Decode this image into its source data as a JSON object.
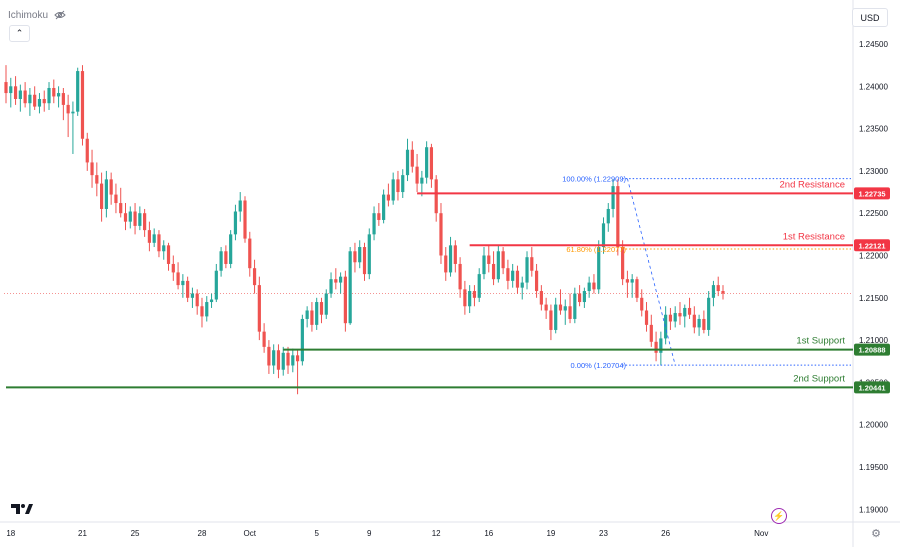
{
  "header": {
    "indicator_label": "Ichimoku",
    "collapse_label": "⌃",
    "currency": "USD"
  },
  "icons": {
    "visibility": "eye-crossed-icon",
    "logo": "tradingview-logo-icon",
    "bolt": "lightning-icon",
    "settings": "gear-icon"
  },
  "colors": {
    "up": "#26a69a",
    "down": "#ef5350",
    "resistance": "#f23645",
    "support": "#2e7d32",
    "fib": "#2962ff",
    "fib618": "#ff9800",
    "last": "#ef5350"
  },
  "chart_data": {
    "type": "candlestick",
    "ylim": [
      1.1885,
      1.2502
    ],
    "y_ticks": [
      "1.24500",
      "1.24000",
      "1.23500",
      "1.23000",
      "1.22500",
      "1.22000",
      "1.21500",
      "1.21000",
      "1.20500",
      "1.20000",
      "1.19500",
      "1.19000"
    ],
    "x_ticks": [
      {
        "i": 1,
        "label": "18"
      },
      {
        "i": 16,
        "label": "21"
      },
      {
        "i": 27,
        "label": "25"
      },
      {
        "i": 41,
        "label": "28"
      },
      {
        "i": 51,
        "label": "Oct"
      },
      {
        "i": 65,
        "label": "5"
      },
      {
        "i": 76,
        "label": "9"
      },
      {
        "i": 90,
        "label": "12"
      },
      {
        "i": 101,
        "label": "16"
      },
      {
        "i": 114,
        "label": "19"
      },
      {
        "i": 125,
        "label": "23"
      },
      {
        "i": 138,
        "label": "26"
      },
      {
        "i": 158,
        "label": "Nov"
      }
    ],
    "last_price": 1.2155,
    "levels": [
      {
        "name": "2nd Resistance",
        "value": 1.22735,
        "price_label": "1.22735",
        "kind": "resistance",
        "from_i": 86
      },
      {
        "name": "1st Resistance",
        "value": 1.22121,
        "price_label": "1.22121",
        "kind": "resistance",
        "from_i": 97
      },
      {
        "name": "1st Support",
        "value": 1.20888,
        "price_label": "1.20888",
        "kind": "support",
        "from_i": 58
      },
      {
        "name": "2nd Support",
        "value": 1.20441,
        "price_label": "1.20441",
        "kind": "support",
        "from_i": 0
      }
    ],
    "fibonacci": [
      {
        "label": "100.00% (1.22909)",
        "value": 1.22909,
        "kind": "fib"
      },
      {
        "label": "61.80% (1.22077)",
        "value": 1.22077,
        "kind": "fib618"
      },
      {
        "label": "0.00% (1.20704)",
        "value": 1.20704,
        "kind": "fib"
      }
    ],
    "candles": [
      [
        1.2405,
        1.2425,
        1.238,
        1.2392
      ],
      [
        1.2392,
        1.241,
        1.2375,
        1.24
      ],
      [
        1.24,
        1.2412,
        1.2378,
        1.2385
      ],
      [
        1.2385,
        1.2402,
        1.237,
        1.2395
      ],
      [
        1.2395,
        1.2405,
        1.2375,
        1.238
      ],
      [
        1.238,
        1.2398,
        1.2365,
        1.239
      ],
      [
        1.239,
        1.24,
        1.2372,
        1.2376
      ],
      [
        1.2376,
        1.2392,
        1.2368,
        1.2385
      ],
      [
        1.2385,
        1.2395,
        1.237,
        1.238
      ],
      [
        1.238,
        1.2405,
        1.2372,
        1.2398
      ],
      [
        1.2398,
        1.2408,
        1.238,
        1.2388
      ],
      [
        1.2388,
        1.24,
        1.2375,
        1.2392
      ],
      [
        1.2392,
        1.2398,
        1.236,
        1.2378
      ],
      [
        1.2378,
        1.239,
        1.234,
        1.2368
      ],
      [
        1.2368,
        1.2382,
        1.232,
        1.237
      ],
      [
        1.237,
        1.2422,
        1.2365,
        1.2418
      ],
      [
        1.2418,
        1.2425,
        1.233,
        1.2338
      ],
      [
        1.2338,
        1.2345,
        1.23,
        1.231
      ],
      [
        1.231,
        1.2325,
        1.228,
        1.2295
      ],
      [
        1.2295,
        1.231,
        1.227,
        1.2285
      ],
      [
        1.2285,
        1.2298,
        1.224,
        1.2255
      ],
      [
        1.2255,
        1.23,
        1.2245,
        1.229
      ],
      [
        1.229,
        1.2298,
        1.226,
        1.2272
      ],
      [
        1.2272,
        1.2285,
        1.225,
        1.2262
      ],
      [
        1.2262,
        1.228,
        1.2245,
        1.225
      ],
      [
        1.225,
        1.2262,
        1.223,
        1.224
      ],
      [
        1.224,
        1.2258,
        1.2232,
        1.2252
      ],
      [
        1.2252,
        1.2262,
        1.2225,
        1.2235
      ],
      [
        1.2235,
        1.2258,
        1.223,
        1.225
      ],
      [
        1.225,
        1.2255,
        1.2222,
        1.223
      ],
      [
        1.223,
        1.224,
        1.2205,
        1.2215
      ],
      [
        1.2215,
        1.2232,
        1.221,
        1.2225
      ],
      [
        1.2225,
        1.223,
        1.2198,
        1.2205
      ],
      [
        1.2205,
        1.2218,
        1.2195,
        1.2212
      ],
      [
        1.2212,
        1.2215,
        1.2182,
        1.219
      ],
      [
        1.219,
        1.22,
        1.217,
        1.218
      ],
      [
        1.218,
        1.2192,
        1.216,
        1.2165
      ],
      [
        1.2165,
        1.2178,
        1.215,
        1.217
      ],
      [
        1.217,
        1.2175,
        1.2145,
        1.215
      ],
      [
        1.215,
        1.2162,
        1.2138,
        1.2155
      ],
      [
        1.2155,
        1.216,
        1.213,
        1.214
      ],
      [
        1.214,
        1.215,
        1.2115,
        1.2128
      ],
      [
        1.2128,
        1.2152,
        1.2122,
        1.2145
      ],
      [
        1.2145,
        1.2155,
        1.2138,
        1.2148
      ],
      [
        1.2148,
        1.219,
        1.2145,
        1.2182
      ],
      [
        1.2182,
        1.221,
        1.2175,
        1.2205
      ],
      [
        1.2205,
        1.2212,
        1.2185,
        1.219
      ],
      [
        1.219,
        1.223,
        1.2185,
        1.2225
      ],
      [
        1.2225,
        1.226,
        1.2218,
        1.2252
      ],
      [
        1.2252,
        1.2275,
        1.224,
        1.2265
      ],
      [
        1.2265,
        1.227,
        1.2215,
        1.222
      ],
      [
        1.222,
        1.2228,
        1.2175,
        1.2185
      ],
      [
        1.2185,
        1.2195,
        1.2155,
        1.2165
      ],
      [
        1.2165,
        1.2175,
        1.21,
        1.211
      ],
      [
        1.211,
        1.212,
        1.2085,
        1.2092
      ],
      [
        1.2092,
        1.21,
        1.206,
        1.207
      ],
      [
        1.207,
        1.2095,
        1.206,
        1.2088
      ],
      [
        1.2088,
        1.2095,
        1.2055,
        1.2065
      ],
      [
        1.2065,
        1.2092,
        1.2058,
        1.2085
      ],
      [
        1.2085,
        1.2092,
        1.206,
        1.207
      ],
      [
        1.207,
        1.209,
        1.2062,
        1.2082
      ],
      [
        1.2082,
        1.2088,
        1.2036,
        1.2075
      ],
      [
        1.2075,
        1.213,
        1.207,
        1.2125
      ],
      [
        1.2125,
        1.214,
        1.2115,
        1.2135
      ],
      [
        1.2135,
        1.2145,
        1.211,
        1.2118
      ],
      [
        1.2118,
        1.215,
        1.2112,
        1.2145
      ],
      [
        1.2145,
        1.215,
        1.212,
        1.213
      ],
      [
        1.213,
        1.216,
        1.2125,
        1.2155
      ],
      [
        1.2155,
        1.218,
        1.215,
        1.2172
      ],
      [
        1.2172,
        1.2185,
        1.216,
        1.2168
      ],
      [
        1.2168,
        1.218,
        1.2155,
        1.2175
      ],
      [
        1.2175,
        1.2182,
        1.211,
        1.212
      ],
      [
        1.212,
        1.221,
        1.2118,
        1.2205
      ],
      [
        1.2205,
        1.2215,
        1.218,
        1.2192
      ],
      [
        1.2192,
        1.2218,
        1.2185,
        1.221
      ],
      [
        1.221,
        1.2215,
        1.217,
        1.2178
      ],
      [
        1.2178,
        1.2232,
        1.2172,
        1.2225
      ],
      [
        1.2225,
        1.2258,
        1.2218,
        1.225
      ],
      [
        1.225,
        1.2262,
        1.2235,
        1.2242
      ],
      [
        1.2242,
        1.2278,
        1.2238,
        1.2272
      ],
      [
        1.2272,
        1.2285,
        1.2258,
        1.2265
      ],
      [
        1.2265,
        1.2298,
        1.226,
        1.229
      ],
      [
        1.229,
        1.23,
        1.2265,
        1.2275
      ],
      [
        1.2275,
        1.2302,
        1.2268,
        1.2295
      ],
      [
        1.2295,
        1.2338,
        1.2288,
        1.2325
      ],
      [
        1.2325,
        1.2335,
        1.2298,
        1.2305
      ],
      [
        1.2305,
        1.232,
        1.2275,
        1.2285
      ],
      [
        1.2285,
        1.23,
        1.227,
        1.2292
      ],
      [
        1.2292,
        1.2335,
        1.2285,
        1.2328
      ],
      [
        1.2328,
        1.2332,
        1.228,
        1.229
      ],
      [
        1.229,
        1.2295,
        1.224,
        1.225
      ],
      [
        1.225,
        1.2262,
        1.219,
        1.22
      ],
      [
        1.22,
        1.221,
        1.217,
        1.218
      ],
      [
        1.218,
        1.2222,
        1.2175,
        1.2212
      ],
      [
        1.2212,
        1.2218,
        1.218,
        1.219
      ],
      [
        1.219,
        1.2198,
        1.215,
        1.216
      ],
      [
        1.216,
        1.217,
        1.213,
        1.214
      ],
      [
        1.214,
        1.2165,
        1.2132,
        1.2158
      ],
      [
        1.2158,
        1.2165,
        1.214,
        1.215
      ],
      [
        1.215,
        1.2185,
        1.2145,
        1.2178
      ],
      [
        1.2178,
        1.221,
        1.2172,
        1.22
      ],
      [
        1.22,
        1.2212,
        1.218,
        1.219
      ],
      [
        1.219,
        1.2205,
        1.2165,
        1.2172
      ],
      [
        1.2172,
        1.2212,
        1.2168,
        1.2205
      ],
      [
        1.2205,
        1.221,
        1.2178,
        1.2185
      ],
      [
        1.2185,
        1.2195,
        1.216,
        1.217
      ],
      [
        1.217,
        1.219,
        1.2162,
        1.2182
      ],
      [
        1.2182,
        1.2188,
        1.2155,
        1.2162
      ],
      [
        1.2162,
        1.2175,
        1.2148,
        1.2168
      ],
      [
        1.2168,
        1.2205,
        1.216,
        1.2198
      ],
      [
        1.2198,
        1.221,
        1.2175,
        1.2182
      ],
      [
        1.2182,
        1.219,
        1.215,
        1.2158
      ],
      [
        1.2158,
        1.2165,
        1.2135,
        1.2142
      ],
      [
        1.2142,
        1.215,
        1.2125,
        1.2135
      ],
      [
        1.2135,
        1.2142,
        1.21,
        1.2112
      ],
      [
        1.2112,
        1.215,
        1.2108,
        1.2142
      ],
      [
        1.2142,
        1.216,
        1.213,
        1.2135
      ],
      [
        1.2135,
        1.2148,
        1.2118,
        1.214
      ],
      [
        1.214,
        1.2155,
        1.212,
        1.2125
      ],
      [
        1.2125,
        1.2162,
        1.212,
        1.2155
      ],
      [
        1.2155,
        1.2165,
        1.214,
        1.2145
      ],
      [
        1.2145,
        1.2162,
        1.2138,
        1.2158
      ],
      [
        1.2158,
        1.2175,
        1.215,
        1.2168
      ],
      [
        1.2168,
        1.2178,
        1.2155,
        1.216
      ],
      [
        1.216,
        1.2218,
        1.2155,
        1.221
      ],
      [
        1.221,
        1.2245,
        1.2202,
        1.2238
      ],
      [
        1.2238,
        1.2262,
        1.2228,
        1.2255
      ],
      [
        1.2255,
        1.229,
        1.2245,
        1.2282
      ],
      [
        1.2282,
        1.229,
        1.22,
        1.221
      ],
      [
        1.221,
        1.2218,
        1.2165,
        1.2172
      ],
      [
        1.2172,
        1.2182,
        1.215,
        1.2168
      ],
      [
        1.2168,
        1.2178,
        1.215,
        1.2172
      ],
      [
        1.2172,
        1.2175,
        1.2145,
        1.215
      ],
      [
        1.215,
        1.216,
        1.2128,
        1.2135
      ],
      [
        1.2135,
        1.2145,
        1.211,
        1.2118
      ],
      [
        1.2118,
        1.213,
        1.2092,
        1.2098
      ],
      [
        1.2098,
        1.211,
        1.2075,
        1.2085
      ],
      [
        1.2085,
        1.211,
        1.207,
        1.2102
      ],
      [
        1.2102,
        1.214,
        1.2095,
        1.213
      ],
      [
        1.213,
        1.2138,
        1.2112,
        1.2122
      ],
      [
        1.2122,
        1.214,
        1.2115,
        1.2132
      ],
      [
        1.2132,
        1.2145,
        1.2118,
        1.2128
      ],
      [
        1.2128,
        1.2142,
        1.2115,
        1.2138
      ],
      [
        1.2138,
        1.215,
        1.2125,
        1.213
      ],
      [
        1.213,
        1.214,
        1.2108,
        1.2115
      ],
      [
        1.2115,
        1.213,
        1.2105,
        1.2125
      ],
      [
        1.2125,
        1.2135,
        1.2108,
        1.2112
      ],
      [
        1.2112,
        1.2158,
        1.2105,
        1.215
      ],
      [
        1.215,
        1.217,
        1.214,
        1.2165
      ],
      [
        1.2165,
        1.2175,
        1.2152,
        1.2158
      ],
      [
        1.2158,
        1.2165,
        1.2148,
        1.2155
      ]
    ]
  }
}
